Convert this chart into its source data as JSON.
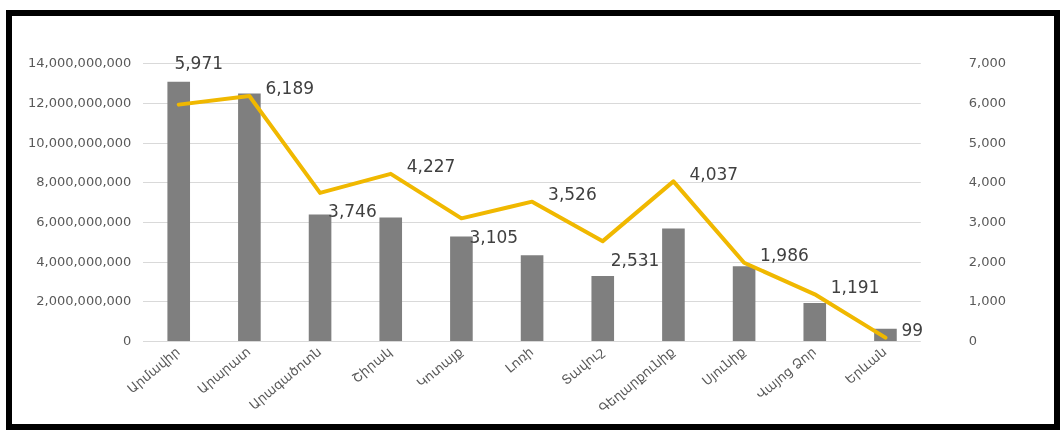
{
  "chart_data": {
    "type": "bar",
    "categories": [
      "Արմավիր",
      "Արարատ",
      "Արագածոտն",
      "Շիրակ",
      "Կոտայք",
      "Լոռի",
      "Տավուշ",
      "Գեղարքունիք",
      "Սյունիք",
      "Վայոց Ձոր",
      "Երևան"
    ],
    "series": [
      {
        "color": "#7f7f7f",
        "values": [
          13100000000,
          12500000000,
          6400000000,
          6250000000,
          5300000000,
          4350000000,
          3300000000,
          5700000000,
          3800000000,
          1950000000,
          650000000
        ]
      },
      {
        "type": "line",
        "axis": "y2",
        "color": "#f0b800",
        "values": [
          5971,
          6189,
          3746,
          4227,
          3105,
          3526,
          2531,
          4037,
          1986,
          1191,
          99
        ],
        "value_labels": [
          "5,971",
          "6,189",
          "3,746",
          "4,227",
          "3,105",
          "3,526",
          "2,531",
          "4,037",
          "1,986",
          "1,191",
          "99"
        ]
      }
    ],
    "ylim": [
      0,
      14000000000
    ],
    "yticks": [
      {
        "value": 0,
        "label": "0"
      },
      {
        "value": 2000000000,
        "label": "2,000,000,000"
      },
      {
        "value": 4000000000,
        "label": "4,000,000,000"
      },
      {
        "value": 6000000000,
        "label": "6,000,000,000"
      },
      {
        "value": 8000000000,
        "label": "8,000,000,000"
      },
      {
        "value": 10000000000,
        "label": "10,000,000,000"
      },
      {
        "value": 12000000000,
        "label": "12,000,000,000"
      },
      {
        "value": 14000000000,
        "label": "14,000,000,000"
      }
    ],
    "y2lim": [
      0,
      7000
    ],
    "y2ticks": [
      {
        "value": 0,
        "label": "0"
      },
      {
        "value": 1000,
        "label": "1,000"
      },
      {
        "value": 2000,
        "label": "2,000"
      },
      {
        "value": 3000,
        "label": "3,000"
      },
      {
        "value": 4000,
        "label": "4,000"
      },
      {
        "value": 5000,
        "label": "5,000"
      },
      {
        "value": 6000,
        "label": "6,000"
      },
      {
        "value": 7000,
        "label": "7,000"
      }
    ],
    "grid": "y",
    "legend": false
  }
}
